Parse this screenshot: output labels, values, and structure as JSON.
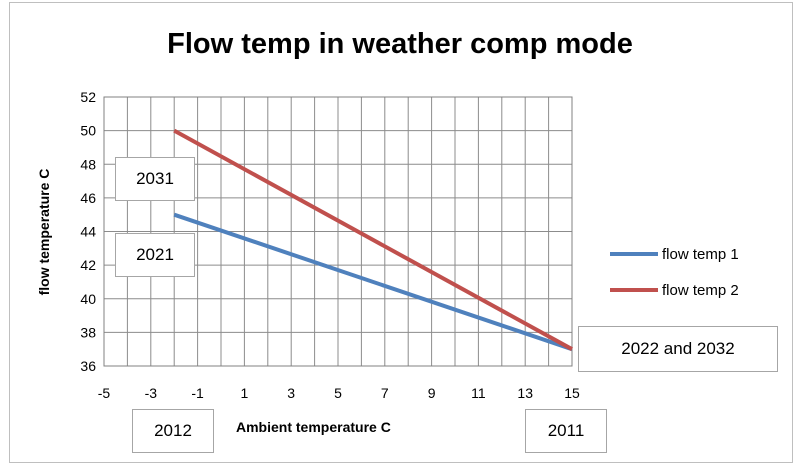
{
  "chart_data": {
    "type": "line",
    "title": "Flow temp in weather comp mode",
    "xlabel": "Ambient temperature C",
    "ylabel": "flow temperature C",
    "xlim": [
      -5,
      15
    ],
    "ylim": [
      36,
      52
    ],
    "x_ticks": [
      "-5",
      "-3",
      "-1",
      "1",
      "3",
      "5",
      "7",
      "9",
      "11",
      "13",
      "15"
    ],
    "y_ticks": [
      "36",
      "38",
      "40",
      "42",
      "44",
      "46",
      "48",
      "50",
      "52"
    ],
    "grid": true,
    "legend_position": "right",
    "series": [
      {
        "name": "flow temp 1",
        "color": "#4f81bd",
        "x": [
          -2,
          15
        ],
        "y": [
          45,
          37
        ]
      },
      {
        "name": "flow temp 2",
        "color": "#c0504d",
        "x": [
          -2,
          15
        ],
        "y": [
          50,
          37
        ]
      }
    ],
    "annotations": [
      "2031",
      "2021",
      "2022 and 2032",
      "2012",
      "2011"
    ]
  }
}
